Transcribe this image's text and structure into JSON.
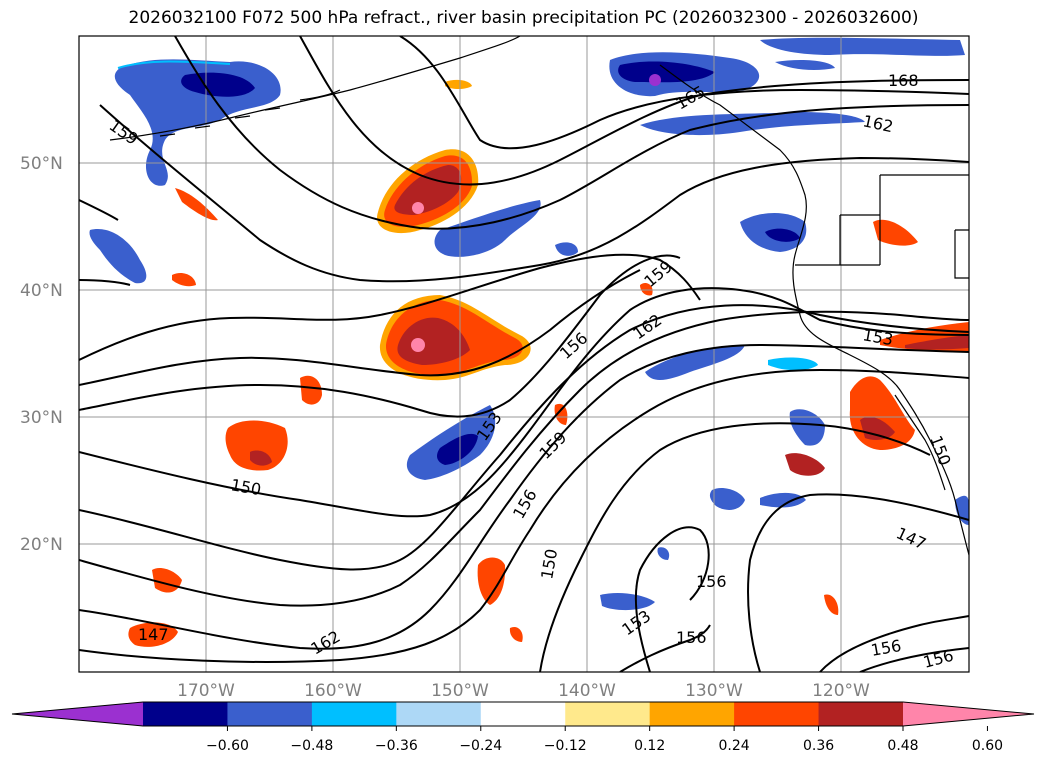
{
  "title": "2026032100 F072 500 hPa refract., river basin precipitation PC (2026032300 - 2026032600)",
  "map": {
    "lat_labels": [
      "50°N",
      "40°N",
      "30°N",
      "20°N"
    ],
    "lon_labels": [
      "170°W",
      "160°W",
      "150°W",
      "140°W",
      "130°W",
      "120°W"
    ],
    "contour_labels": [
      "159",
      "165",
      "168",
      "162",
      "159",
      "162",
      "156",
      "153",
      "159",
      "156",
      "153",
      "150",
      "150",
      "153",
      "156",
      "156",
      "156",
      "147",
      "147",
      "162",
      "150",
      "153",
      "156",
      "156"
    ],
    "contour_color": "#000000",
    "coastline_color": "#000000",
    "grid_color": "#999999"
  },
  "colorbar": {
    "ticks": [
      "−0.60",
      "−0.48",
      "−0.36",
      "−0.24",
      "−0.12",
      "0.12",
      "0.24",
      "0.36",
      "0.48",
      "0.60"
    ],
    "colors": [
      "#9b30d0",
      "#00008b",
      "#3a5fcd",
      "#00bfff",
      "#add8f6",
      "#ffffff",
      "#ffe98c",
      "#ffa500",
      "#ff4500",
      "#b22222",
      "#ff85aa"
    ]
  }
}
